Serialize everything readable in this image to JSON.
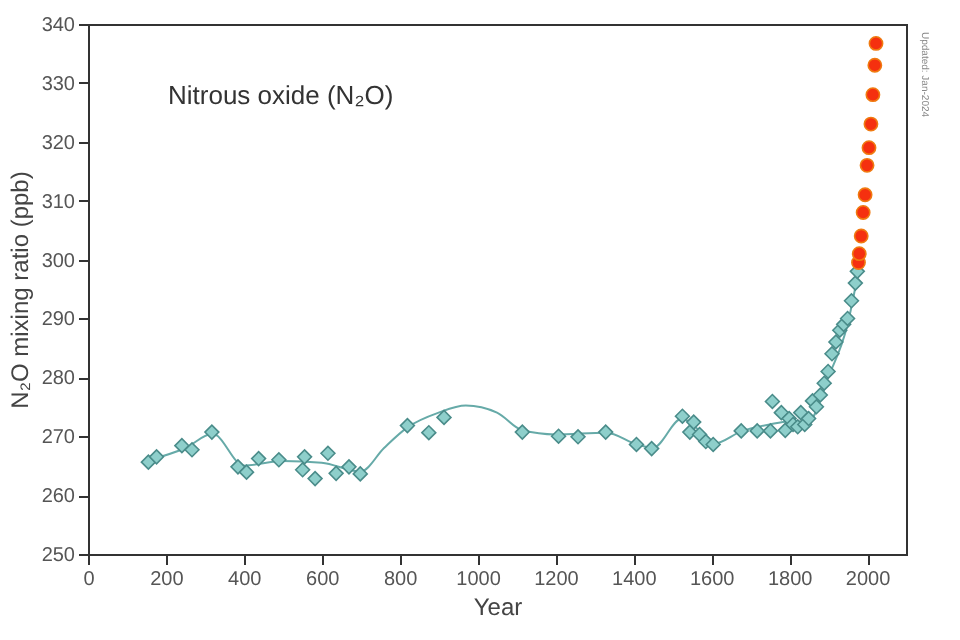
{
  "chart_data": {
    "type": "scatter",
    "title": "Nitrous oxide (N₂O)",
    "xlabel": "Year",
    "ylabel": "N₂O mixing ratio (ppb)",
    "xlim": [
      0,
      2100
    ],
    "xticks": [
      0,
      200,
      400,
      600,
      800,
      1000,
      1200,
      1400,
      1600,
      1800,
      2000
    ],
    "ylim": [
      250,
      340
    ],
    "yticks": [
      250,
      260,
      270,
      280,
      290,
      300,
      310,
      320,
      330,
      340
    ],
    "grid": false,
    "annotations": [
      "Updated: Jan-2024"
    ],
    "series": [
      {
        "type": "line",
        "color": "#66aaa8",
        "x": [
          150,
          250,
          320,
          400,
          500,
          600,
          700,
          760,
          820,
          900,
          970,
          1050,
          1115,
          1200,
          1330,
          1410,
          1450,
          1525,
          1560,
          1605,
          1680,
          1750,
          1800,
          1850,
          1900,
          1950,
          1975
        ],
        "values": [
          265.8,
          268,
          270.4,
          265,
          265.8,
          265.5,
          264,
          268,
          271.5,
          274,
          275.2,
          274,
          271,
          270.3,
          270.6,
          268.6,
          268,
          273,
          271.5,
          268.7,
          270.9,
          272,
          272.5,
          272.5,
          280,
          289,
          297
        ]
      },
      {
        "marker": "diamond",
        "color": "#8ecfcb",
        "x": [
          155,
          176,
          241,
          267,
          318,
          385,
          407,
          438,
          490,
          551,
          556,
          583,
          616,
          637,
          670,
          699,
          820,
          875,
          914,
          1115,
          1208,
          1258,
          1329,
          1408,
          1447,
          1526,
          1545,
          1555,
          1570,
          1586,
          1605,
          1677,
          1718,
          1752,
          1757,
          1780,
          1790,
          1800,
          1810,
          1822,
          1830,
          1840,
          1850,
          1860,
          1870,
          1880,
          1890,
          1900,
          1910,
          1920,
          1930,
          1940,
          1950,
          1960,
          1970,
          1975
        ],
        "values": [
          265.6,
          266.5,
          268.4,
          267.7,
          270.7,
          264.8,
          263.9,
          266.2,
          266,
          264.3,
          266.5,
          262.8,
          267.1,
          263.7,
          264.8,
          263.6,
          271.8,
          270.6,
          273.2,
          270.7,
          270,
          269.9,
          270.7,
          268.6,
          267.9,
          273.4,
          270.7,
          272.4,
          270.3,
          269.1,
          268.6,
          270.9,
          270.9,
          270.9,
          275.9,
          274,
          271,
          273,
          272,
          271.6,
          274,
          272,
          273,
          276,
          275,
          277,
          279,
          281,
          284,
          286,
          288,
          289,
          290,
          293,
          296,
          298
        ]
      },
      {
        "marker": "circle",
        "color": "#f5300f",
        "x": [
          1978,
          1980,
          1985,
          1990,
          1995,
          2000,
          2005,
          2010,
          2015,
          2020,
          2023
        ],
        "values": [
          299.5,
          301,
          304,
          308,
          311,
          316,
          319,
          323,
          328,
          333,
          336.7
        ]
      }
    ]
  }
}
